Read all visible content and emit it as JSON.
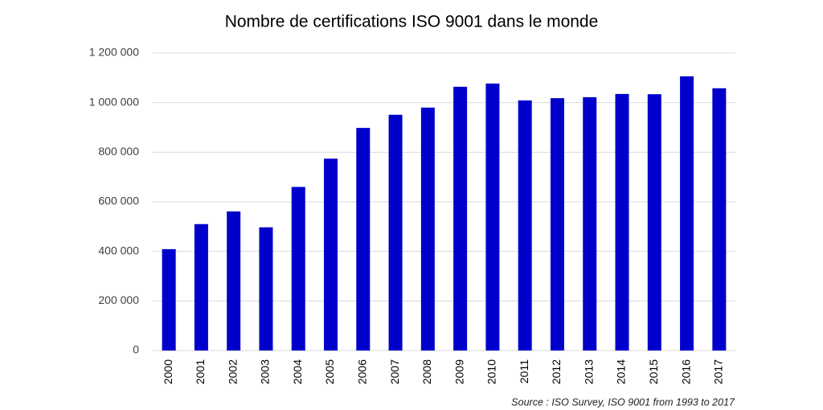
{
  "chart_data": {
    "type": "bar",
    "title": "Nombre de certifications ISO 9001 dans le monde",
    "source": "Source : ISO Survey, ISO 9001 from 1993 to 2017",
    "categories": [
      "2000",
      "2001",
      "2002",
      "2003",
      "2004",
      "2005",
      "2006",
      "2007",
      "2008",
      "2009",
      "2010",
      "2011",
      "2012",
      "2013",
      "2014",
      "2015",
      "2016",
      "2017"
    ],
    "values": [
      409000,
      510000,
      561000,
      497000,
      660000,
      774000,
      898000,
      951000,
      980000,
      1064000,
      1077000,
      1009000,
      1018000,
      1022000,
      1035000,
      1034000,
      1106000,
      1058000
    ],
    "color": "#0000cc",
    "ylim": [
      0,
      1200000
    ],
    "yticks": [
      0,
      {
        "value": 200000,
        "label": "200 000"
      },
      {
        "value": 400000,
        "label": "400 000"
      },
      {
        "value": 600000,
        "label": "600 000"
      },
      {
        "value": 800000,
        "label": "800 000"
      },
      {
        "value": 1000000,
        "label": "1 000 000"
      },
      {
        "value": 1200000,
        "label": "1 200 000"
      }
    ],
    "grid": true
  }
}
